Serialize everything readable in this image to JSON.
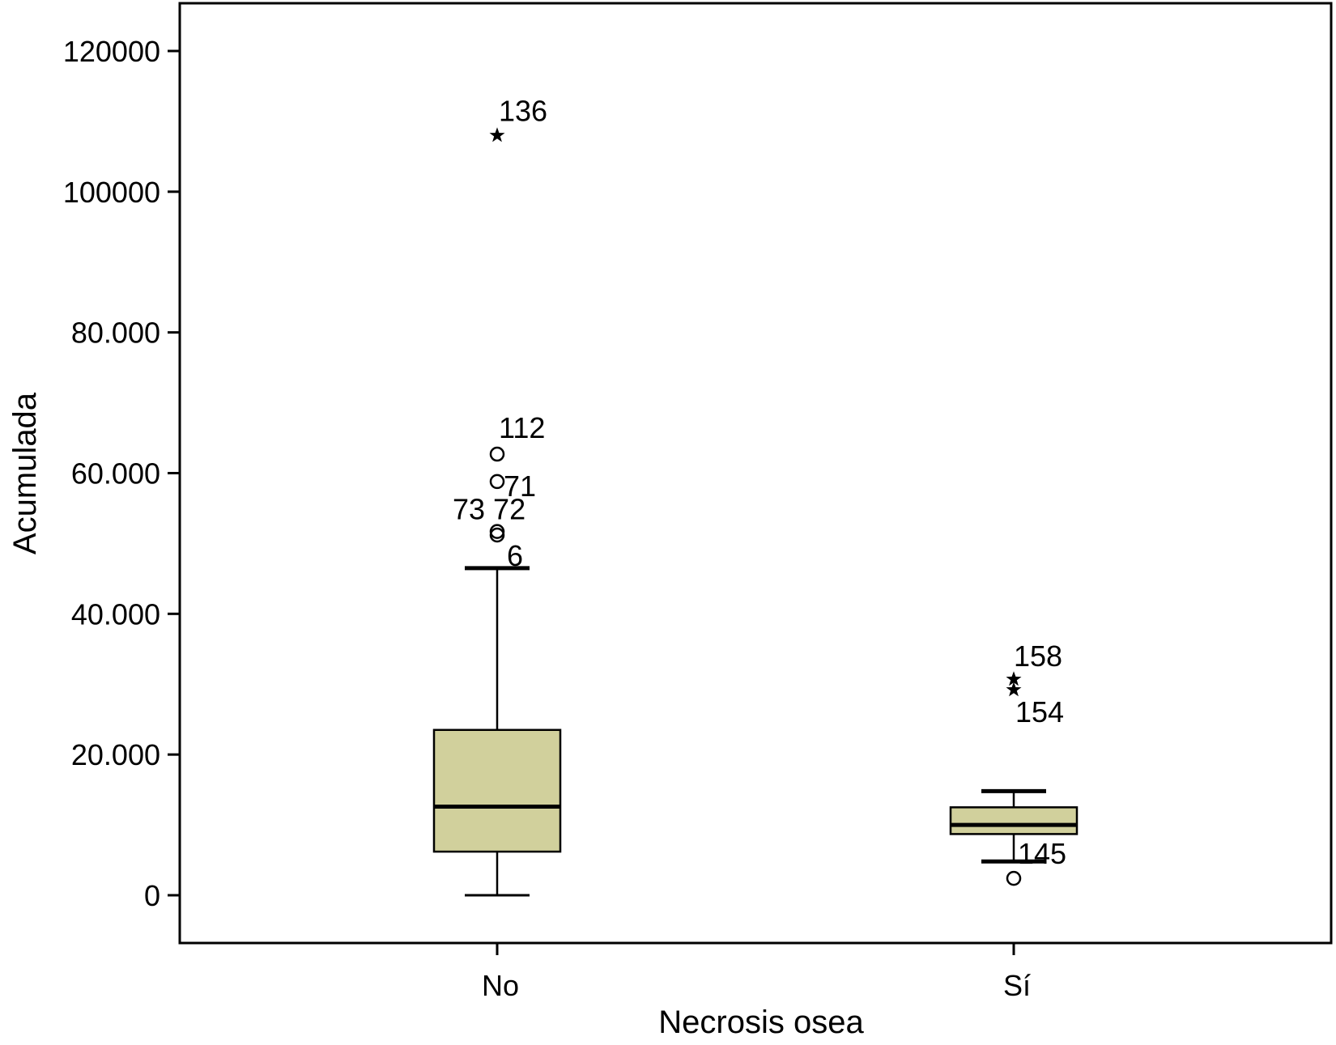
{
  "chart_data": {
    "type": "boxplot",
    "title": "",
    "xlabel": "Necrosis osea",
    "ylabel": "Acumulada",
    "ylim": [
      -7000,
      127000
    ],
    "grid": false,
    "y_ticks": [
      {
        "value": 0,
        "label": "0"
      },
      {
        "value": 20000,
        "label": "20.000"
      },
      {
        "value": 40000,
        "label": "40.000"
      },
      {
        "value": 60000,
        "label": "60.000"
      },
      {
        "value": 80000,
        "label": "80.000"
      },
      {
        "value": 100000,
        "label": "100000"
      },
      {
        "value": 120000,
        "label": "120000"
      }
    ],
    "categories": [
      "No",
      "Sí"
    ],
    "box_color": "#d1d09c",
    "boxes": [
      {
        "category": "No",
        "whisker_low": 0,
        "q1": 6200,
        "median": 12600,
        "q3": 23500,
        "whisker_high": 46500,
        "outliers": [
          {
            "value": 108000,
            "label": "136",
            "marker": "star"
          },
          {
            "value": 62700,
            "label": "112",
            "marker": "circle"
          },
          {
            "value": 58800,
            "label": "71",
            "marker": "circle"
          },
          {
            "value": 51700,
            "label": "73 72",
            "marker": "circle"
          },
          {
            "value": 51200,
            "label": "6",
            "marker": "circle"
          }
        ]
      },
      {
        "category": "Sí",
        "whisker_low": 4800,
        "q1": 8700,
        "median": 10000,
        "q3": 12500,
        "whisker_high": 14800,
        "outliers": [
          {
            "value": 30700,
            "label": "158",
            "marker": "star"
          },
          {
            "value": 29200,
            "label": "154",
            "marker": "star"
          },
          {
            "value": 2400,
            "label": "145",
            "marker": "circle"
          }
        ]
      }
    ]
  }
}
